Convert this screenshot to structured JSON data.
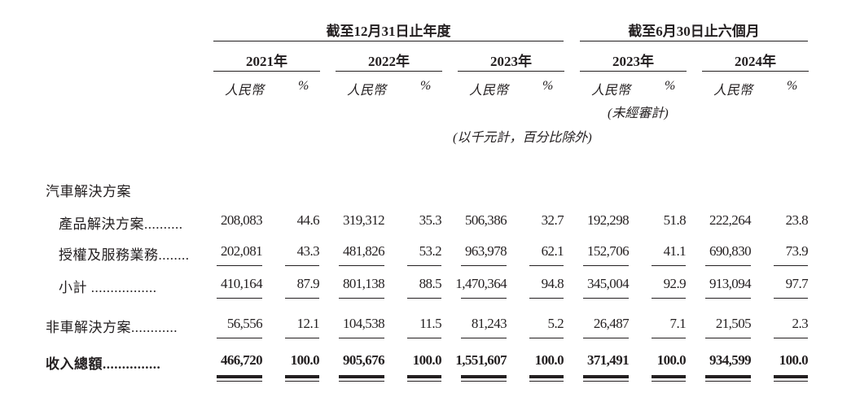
{
  "header": {
    "group_annual": "截至12月31日止年度",
    "group_interim": "截至6月30日止六個月",
    "periods": [
      {
        "year": "2021年",
        "currency": "人民幣",
        "pct": "%"
      },
      {
        "year": "2022年",
        "currency": "人民幣",
        "pct": "%"
      },
      {
        "year": "2023年",
        "currency": "人民幣",
        "pct": "%"
      },
      {
        "year": "2023年",
        "currency": "人民幣",
        "pct": "%",
        "note": "(未經審計)"
      },
      {
        "year": "2024年",
        "currency": "人民幣",
        "pct": "%"
      }
    ],
    "unit_note": "(以千元計，百分比除外)"
  },
  "rows": [
    {
      "label": "汽車解決方案",
      "values": []
    },
    {
      "label": "產品解決方案..........",
      "indent": true,
      "values": [
        "208,083",
        "44.6",
        "319,312",
        "35.3",
        "506,386",
        "32.7",
        "192,298",
        "51.8",
        "222,264",
        "23.8"
      ]
    },
    {
      "label": "授權及服務業務........",
      "indent": true,
      "underline": "single",
      "values": [
        "202,081",
        "43.3",
        "481,826",
        "53.2",
        "963,978",
        "62.1",
        "152,706",
        "41.1",
        "690,830",
        "73.9"
      ]
    },
    {
      "label": "小計 .................",
      "indent": true,
      "underline": "single",
      "values": [
        "410,164",
        "87.9",
        "801,138",
        "88.5",
        "1,470,364",
        "94.8",
        "345,004",
        "92.9",
        "913,094",
        "97.7"
      ]
    },
    {
      "label": "非車解決方案............",
      "underline": "single",
      "values": [
        "56,556",
        "12.1",
        "104,538",
        "11.5",
        "81,243",
        "5.2",
        "26,487",
        "7.1",
        "21,505",
        "2.3"
      ]
    },
    {
      "label": "收入總額...............",
      "bold": true,
      "underline": "double",
      "values": [
        "466,720",
        "100.0",
        "905,676",
        "100.0",
        "1,551,607",
        "100.0",
        "371,491",
        "100.0",
        "934,599",
        "100.0"
      ]
    }
  ]
}
